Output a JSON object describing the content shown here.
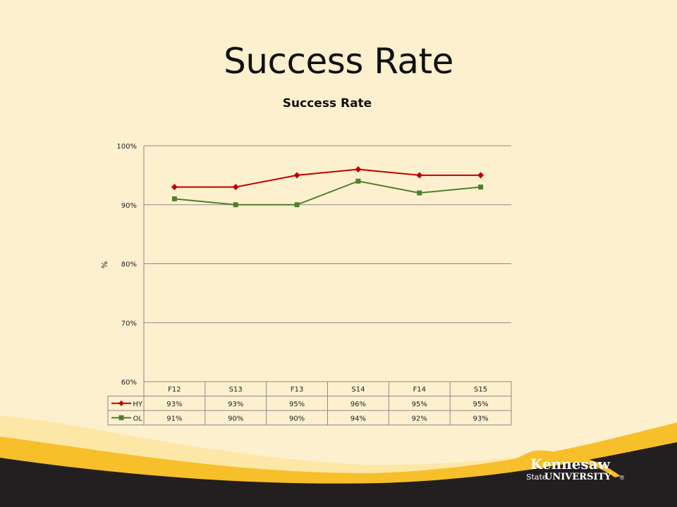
{
  "slide": {
    "title": "Success Rate",
    "colors": {
      "background": "#fdf0cf",
      "band_gold": "#f7bf2a",
      "band_dark": "#231f20"
    }
  },
  "logo": {
    "line1": "Kennesaw",
    "line2a": "State",
    "line2b": "UNIVERSITY",
    "mark": "®"
  },
  "chart_data": {
    "type": "line",
    "title": "Success Rate",
    "ylabel": "%",
    "xlabel": "",
    "categories": [
      "F12",
      "S13",
      "F13",
      "S14",
      "F14",
      "S15"
    ],
    "ylim": [
      60,
      100
    ],
    "yticks": [
      60,
      70,
      80,
      90,
      100
    ],
    "ytick_labels": [
      "60%",
      "70%",
      "80%",
      "90%",
      "100%"
    ],
    "grid": true,
    "legend": "data-table",
    "series": [
      {
        "name": "HY",
        "values": [
          93,
          93,
          95,
          96,
          95,
          95
        ],
        "labels": [
          "93%",
          "93%",
          "95%",
          "96%",
          "95%",
          "95%"
        ],
        "color": "#c00000",
        "marker": "diamond"
      },
      {
        "name": "OL",
        "values": [
          91,
          90,
          90,
          94,
          92,
          93
        ],
        "labels": [
          "91%",
          "90%",
          "90%",
          "94%",
          "92%",
          "93%"
        ],
        "color": "#4f7f2e",
        "marker": "square"
      }
    ]
  }
}
